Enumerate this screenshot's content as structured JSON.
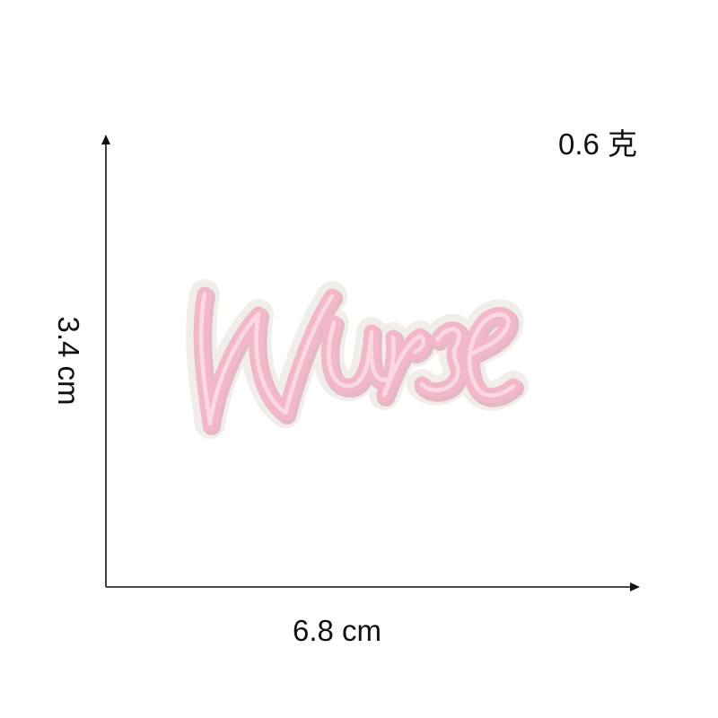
{
  "product": {
    "patch_text": "Nurse",
    "weight_label": "0.6 克",
    "width_label": "6.8 cm",
    "height_label": "3.4 cm"
  },
  "colors": {
    "thread_pink": "#f2b7c8",
    "thread_shadow": "#d98ea6",
    "backing": "#f1eeea",
    "axis": "#111111"
  }
}
